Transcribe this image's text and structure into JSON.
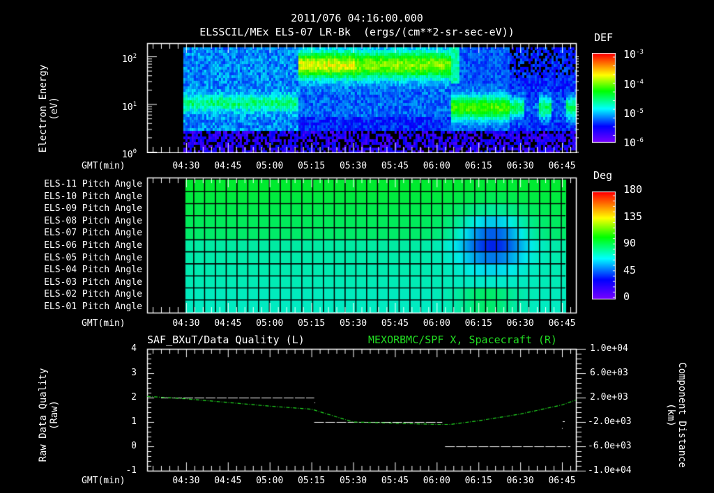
{
  "header": {
    "timestamp": "2011/076 04:16:00.000",
    "subtitle": "ELSSCIL/MEx ELS-07 LR-Bk  (ergs/(cm**2-sr-sec-eV))"
  },
  "time_axis": {
    "label": "GMT(min)",
    "ticks": [
      "04:30",
      "04:45",
      "05:00",
      "05:15",
      "05:30",
      "05:45",
      "06:00",
      "06:15",
      "06:30",
      "06:45"
    ]
  },
  "panels": {
    "spectrogram": {
      "ylabel_line1": "Electron Energy",
      "ylabel_line2": "(eV)",
      "yticks": [
        "10",
        "10",
        "10"
      ],
      "yticks_exp": [
        "2",
        "1",
        "0"
      ],
      "colorbar": {
        "title": "DEF",
        "labels": [
          "10",
          "10",
          "10",
          "10"
        ],
        "labels_exp": [
          "-3",
          "-4",
          "-5",
          "-6"
        ]
      }
    },
    "pitch": {
      "rows": [
        "ELS-11 Pitch Angle",
        "ELS-10 Pitch Angle",
        "ELS-09 Pitch Angle",
        "ELS-08 Pitch Angle",
        "ELS-07 Pitch Angle",
        "ELS-06 Pitch Angle",
        "ELS-05 Pitch Angle",
        "ELS-04 Pitch Angle",
        "ELS-03 Pitch Angle",
        "ELS-02 Pitch Angle",
        "ELS-01 Pitch Angle"
      ],
      "colorbar": {
        "title": "Deg",
        "labels": [
          "180",
          "135",
          "90",
          "45",
          "0"
        ]
      }
    },
    "lineplot": {
      "left_title": "SAF_BXuT/Data Quality (L)",
      "right_title": "MEXORBMC/SPF X, Spacecraft (R)",
      "ylabel_left_line1": "Raw Data Quality",
      "ylabel_left_line2": "(Raw)",
      "ylabel_right_line1": "Component Distance",
      "ylabel_right_line2": "(km)",
      "yticks_left": [
        "4",
        "3",
        "2",
        "1",
        "0",
        "-1"
      ],
      "yticks_right": [
        "1.0e+04",
        "6.0e+03",
        "2.0e+03",
        "-2.0e+03",
        "-6.0e+03",
        "-1.0e+04"
      ]
    }
  },
  "colors": {
    "background": "#000000",
    "axis": "#ffffff",
    "right_series": "#22dd22",
    "left_series": "#ffffff"
  },
  "chart_data": [
    {
      "type": "heatmap",
      "title": "ELSSCIL/MEx ELS-07 LR-Bk (ergs/(cm**2-sr-sec-eV))",
      "xlabel": "GMT(min)",
      "ylabel": "Electron Energy (eV)",
      "yscale": "log",
      "ylim": [
        1,
        150
      ],
      "x_range": [
        "04:16",
        "06:50"
      ],
      "data_start": "04:30",
      "colorbar": {
        "label": "DEF",
        "scale": "log",
        "range": [
          1e-06,
          0.001
        ]
      },
      "features": [
        {
          "time": "04:30-05:10",
          "energy_eV": "8-15",
          "level": "~1e-5 (cyan band)"
        },
        {
          "time": "05:10-06:05",
          "energy_eV": "30-150",
          "level": "~1e-4 (green/yellow band)"
        },
        {
          "time": "06:05-06:25",
          "energy_eV": "4-20",
          "level": "~1e-4 (green)"
        },
        {
          "time": "06:30-06:50",
          "energy_eV": "5-20",
          "level": "~3e-5 (intermittent vertical stripes)"
        }
      ]
    },
    {
      "type": "heatmap",
      "title": "Pitch Angle",
      "xlabel": "GMT(min)",
      "categories": [
        "ELS-11",
        "ELS-10",
        "ELS-09",
        "ELS-08",
        "ELS-07",
        "ELS-06",
        "ELS-05",
        "ELS-04",
        "ELS-03",
        "ELS-02",
        "ELS-01"
      ],
      "colorbar": {
        "label": "Deg",
        "range": [
          0,
          180
        ],
        "ticks": [
          0,
          45,
          90,
          135,
          180
        ]
      },
      "data_start": "04:30",
      "data_end": "06:47",
      "features": [
        {
          "rows": "ELS-11 to ELS-08",
          "value_deg": "~95-100"
        },
        {
          "rows": "ELS-07 to ELS-01",
          "value_deg": "~75-85"
        },
        {
          "time": "06:10-06:30",
          "rows": "ELS-09 to ELS-05",
          "value_deg": "~45-60 (minimum)"
        },
        {
          "time": "06:10-06:25",
          "rows": "ELS-02 to ELS-01",
          "value_deg": "~95"
        }
      ]
    },
    {
      "type": "line",
      "title_left": "SAF_BXuT/Data Quality (L)",
      "title_right": "MEXORBMC/SPF X, Spacecraft (R)",
      "xlabel": "GMT(min)",
      "ylabel_left": "Raw Data Quality (Raw)",
      "ylabel_right": "Component Distance (km)",
      "ylim_left": [
        -1,
        4
      ],
      "ylim_right": [
        -10000,
        10000
      ],
      "series": [
        {
          "name": "Data Quality (L)",
          "axis": "left",
          "color": "#ffffff",
          "segments": [
            {
              "x": [
                "04:21",
                "05:16"
              ],
              "y": 2
            },
            {
              "x": [
                "05:16",
                "06:02"
              ],
              "y": 1
            },
            {
              "x": [
                "06:03",
                "06:48"
              ],
              "y": 0
            }
          ]
        },
        {
          "name": "SPF X (R)",
          "axis": "right",
          "color": "#22dd22",
          "x": [
            "04:16",
            "04:30",
            "04:45",
            "05:00",
            "05:15",
            "05:30",
            "05:45",
            "06:00",
            "06:05",
            "06:15",
            "06:30",
            "06:45",
            "06:50"
          ],
          "values": [
            2200,
            1800,
            1200,
            600,
            100,
            -2000,
            -2200,
            -2400,
            -2400,
            -1800,
            -700,
            800,
            1600
          ]
        }
      ]
    }
  ]
}
